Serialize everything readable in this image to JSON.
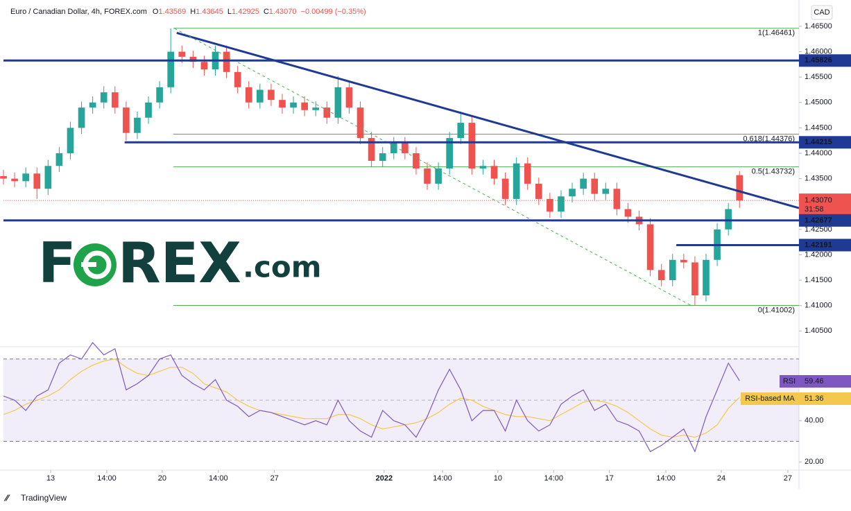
{
  "header": {
    "symbol": "Euro / Canadian Dollar, 4h, FOREX.com",
    "o": "O",
    "h": "H",
    "l": "L",
    "c": "C",
    "change": "−0.00499 (−0.35%)",
    "currency": "CAD"
  },
  "logo": [
    "F",
    "REX",
    ".com"
  ],
  "footer": "TradingView",
  "chart_data": {
    "type": "candlestick",
    "x": [
      0,
      3,
      6,
      9,
      12,
      15,
      18,
      21,
      24,
      27,
      30,
      33,
      36,
      39,
      42,
      45,
      48,
      51,
      54,
      57,
      60,
      63,
      66,
      69,
      72,
      75,
      78,
      81,
      84,
      87,
      90,
      93,
      96,
      99,
      102,
      105,
      108,
      111,
      114,
      117,
      120,
      123,
      126,
      129,
      132,
      135,
      138,
      141,
      144,
      147,
      150,
      153,
      156,
      159,
      162,
      165,
      168,
      171,
      174,
      177,
      180,
      183,
      186,
      189,
      192,
      195,
      198
    ],
    "open": [
      1.4355,
      1.435,
      1.4345,
      1.436,
      1.433,
      1.4375,
      1.44,
      1.445,
      1.449,
      1.45,
      1.452,
      1.449,
      1.444,
      1.447,
      1.45,
      1.453,
      1.46,
      1.459,
      1.458,
      1.4565,
      1.46,
      1.456,
      1.453,
      1.45,
      1.4525,
      1.4505,
      1.449,
      1.45,
      1.4485,
      1.449,
      1.447,
      1.453,
      1.449,
      1.443,
      1.4385,
      1.44,
      1.442,
      1.44,
      1.437,
      1.434,
      1.437,
      1.443,
      1.446,
      1.437,
      1.4375,
      1.435,
      1.431,
      1.438,
      1.434,
      1.431,
      1.4285,
      1.4315,
      1.433,
      1.435,
      1.432,
      1.433,
      1.429,
      1.4275,
      1.426,
      1.417,
      1.415,
      1.419,
      1.4185,
      1.412,
      1.419,
      1.425,
      1.43569
    ],
    "high": [
      1.4367,
      1.4362,
      1.4372,
      1.4372,
      1.4387,
      1.4412,
      1.4462,
      1.4502,
      1.4512,
      1.4532,
      1.4532,
      1.4502,
      1.4482,
      1.4512,
      1.4542,
      1.4646,
      1.4612,
      1.4602,
      1.4592,
      1.4612,
      1.4612,
      1.4572,
      1.4542,
      1.4537,
      1.4537,
      1.4517,
      1.4512,
      1.4512,
      1.4502,
      1.4502,
      1.4552,
      1.4542,
      1.4502,
      1.4442,
      1.4412,
      1.4432,
      1.4432,
      1.4412,
      1.4382,
      1.4382,
      1.4442,
      1.4482,
      1.4472,
      1.4387,
      1.4387,
      1.4362,
      1.4392,
      1.4392,
      1.4352,
      1.4322,
      1.4327,
      1.4342,
      1.4362,
      1.4362,
      1.4342,
      1.4342,
      1.4302,
      1.4287,
      1.4272,
      1.4182,
      1.4202,
      1.4202,
      1.4197,
      1.4202,
      1.4262,
      1.4302,
      1.43645
    ],
    "low": [
      1.4338,
      1.4333,
      1.4333,
      1.431,
      1.4318,
      1.4363,
      1.4388,
      1.4438,
      1.4478,
      1.4488,
      1.4478,
      1.4425,
      1.4428,
      1.4458,
      1.4488,
      1.4518,
      1.4578,
      1.4568,
      1.4553,
      1.4553,
      1.4548,
      1.4518,
      1.4488,
      1.4488,
      1.4493,
      1.4478,
      1.4478,
      1.4473,
      1.4473,
      1.4458,
      1.4458,
      1.4478,
      1.4418,
      1.4373,
      1.4373,
      1.4388,
      1.4388,
      1.4358,
      1.4328,
      1.4328,
      1.4358,
      1.4418,
      1.4358,
      1.4358,
      1.4338,
      1.4298,
      1.4298,
      1.4328,
      1.4298,
      1.4273,
      1.4273,
      1.4303,
      1.4318,
      1.4308,
      1.4308,
      1.4278,
      1.4263,
      1.4248,
      1.4158,
      1.4138,
      1.4138,
      1.4173,
      1.41,
      1.4108,
      1.4178,
      1.4238,
      1.42925
    ],
    "close": [
      1.435,
      1.4345,
      1.436,
      1.433,
      1.4375,
      1.44,
      1.445,
      1.449,
      1.45,
      1.452,
      1.449,
      1.444,
      1.447,
      1.45,
      1.453,
      1.46,
      1.459,
      1.458,
      1.4565,
      1.46,
      1.456,
      1.453,
      1.45,
      1.4525,
      1.4505,
      1.449,
      1.45,
      1.4485,
      1.449,
      1.447,
      1.453,
      1.449,
      1.443,
      1.4385,
      1.44,
      1.442,
      1.44,
      1.437,
      1.434,
      1.437,
      1.443,
      1.446,
      1.437,
      1.4375,
      1.435,
      1.431,
      1.438,
      1.434,
      1.431,
      1.4285,
      1.4315,
      1.433,
      1.435,
      1.432,
      1.433,
      1.429,
      1.4275,
      1.426,
      1.417,
      1.415,
      1.419,
      1.4185,
      1.412,
      1.419,
      1.425,
      1.429,
      1.4307
    ],
    "colors": {
      "up": "#26a69a",
      "down": "#ef5350"
    },
    "xlim": [
      0,
      214
    ],
    "xticks": [
      {
        "value": 12.7,
        "label": "13"
      },
      {
        "value": 27.8,
        "label": "14:00"
      },
      {
        "value": 42.7,
        "label": "20"
      },
      {
        "value": 57.8,
        "label": "14:00"
      },
      {
        "value": 72.9,
        "label": "27"
      },
      {
        "value": 102.4,
        "label": "2022"
      },
      {
        "value": 118.1,
        "label": "14:00"
      },
      {
        "value": 133,
        "label": "10"
      },
      {
        "value": 148,
        "label": "14:00"
      },
      {
        "value": 163,
        "label": "17"
      },
      {
        "value": 178.2,
        "label": "14:00"
      },
      {
        "value": 193.1,
        "label": "24"
      },
      {
        "value": 211,
        "label": "27"
      }
    ],
    "ylim": [
      1.4019,
      1.4695
    ],
    "yticks": [
      {
        "value": 1.405,
        "label": "1.40500"
      },
      {
        "value": 1.41,
        "label": "1.41000"
      },
      {
        "value": 1.415,
        "label": "1.41500"
      },
      {
        "value": 1.42,
        "label": "1.42000"
      },
      {
        "value": 1.425,
        "label": "1.42500"
      },
      {
        "value": 1.43,
        "label": "1.43000"
      },
      {
        "value": 1.435,
        "label": "1.43500"
      },
      {
        "value": 1.44,
        "label": "1.44000"
      },
      {
        "value": 1.445,
        "label": "1.44500"
      },
      {
        "value": 1.45,
        "label": "1.45000"
      },
      {
        "value": 1.455,
        "label": "1.45500"
      },
      {
        "value": 1.46,
        "label": "1.46000"
      },
      {
        "value": 1.465,
        "label": "1.46500"
      }
    ],
    "levels": [
      {
        "value": 1.45826,
        "x0": 0
      },
      {
        "value": 1.44215,
        "x0": 32.6
      },
      {
        "value": 1.42677,
        "x0": 0
      },
      {
        "value": 1.42191,
        "x0": 181
      }
    ],
    "level_color": "#1f3a93",
    "trendlines": [
      {
        "x": [
          46.6,
          214
        ],
        "y": [
          1.4637,
          1.4292
        ],
        "dashed": false
      },
      {
        "x": [
          46,
          185
        ],
        "y": [
          1.4646,
          1.41
        ],
        "dashed": true
      }
    ],
    "fib": {
      "x0": 45.7,
      "color": "#4caf50",
      "levels": [
        {
          "value": 1.46461,
          "label": "1(1.46461)"
        },
        {
          "value": 1.44376,
          "label": "0.618(1.44376)"
        },
        {
          "value": 1.43732,
          "label": "0.5(1.43732)"
        },
        {
          "value": 1.41002,
          "label": "0(1.41002)"
        }
      ]
    },
    "last": {
      "value": 1.4307,
      "label": "1.43070",
      "timer": "31:58"
    },
    "rsi": {
      "name": "RSI",
      "color": "#7e57c2",
      "values": [
        52,
        50,
        45,
        52,
        55,
        68,
        72,
        70,
        78,
        72,
        75,
        55,
        58,
        62,
        70,
        72,
        62,
        58,
        55,
        60,
        50,
        47,
        42,
        45,
        44,
        42,
        40,
        38,
        40,
        38,
        50,
        40,
        35,
        32,
        45,
        40,
        38,
        32,
        42,
        55,
        65,
        55,
        40,
        45,
        45,
        35,
        50,
        40,
        35,
        38,
        48,
        52,
        55,
        45,
        48,
        40,
        38,
        35,
        25,
        28,
        32,
        36,
        25,
        42,
        55,
        68,
        59.46
      ],
      "ma_name": "RSI-based MA",
      "ma_color": "#f2c94c",
      "ma": [
        43,
        45,
        48,
        50,
        52,
        55,
        60,
        64,
        67,
        69,
        70,
        66,
        63,
        62,
        64,
        66,
        66,
        63,
        58,
        56,
        54,
        50,
        47,
        45,
        44,
        43,
        42,
        41,
        41,
        41,
        43,
        43,
        41,
        38,
        36,
        37,
        38,
        39,
        41,
        44,
        48,
        51,
        50,
        47,
        45,
        43,
        42,
        42,
        41,
        40,
        43,
        46,
        49,
        50,
        49,
        47,
        44,
        40,
        36,
        33,
        32,
        33,
        32,
        34,
        38,
        46,
        51.36
      ],
      "ylim": [
        16,
        76
      ],
      "yticks": [
        {
          "value": 20,
          "label": "20.00"
        },
        {
          "value": 40,
          "label": "40.00"
        }
      ],
      "bands": [
        30,
        70
      ]
    }
  }
}
